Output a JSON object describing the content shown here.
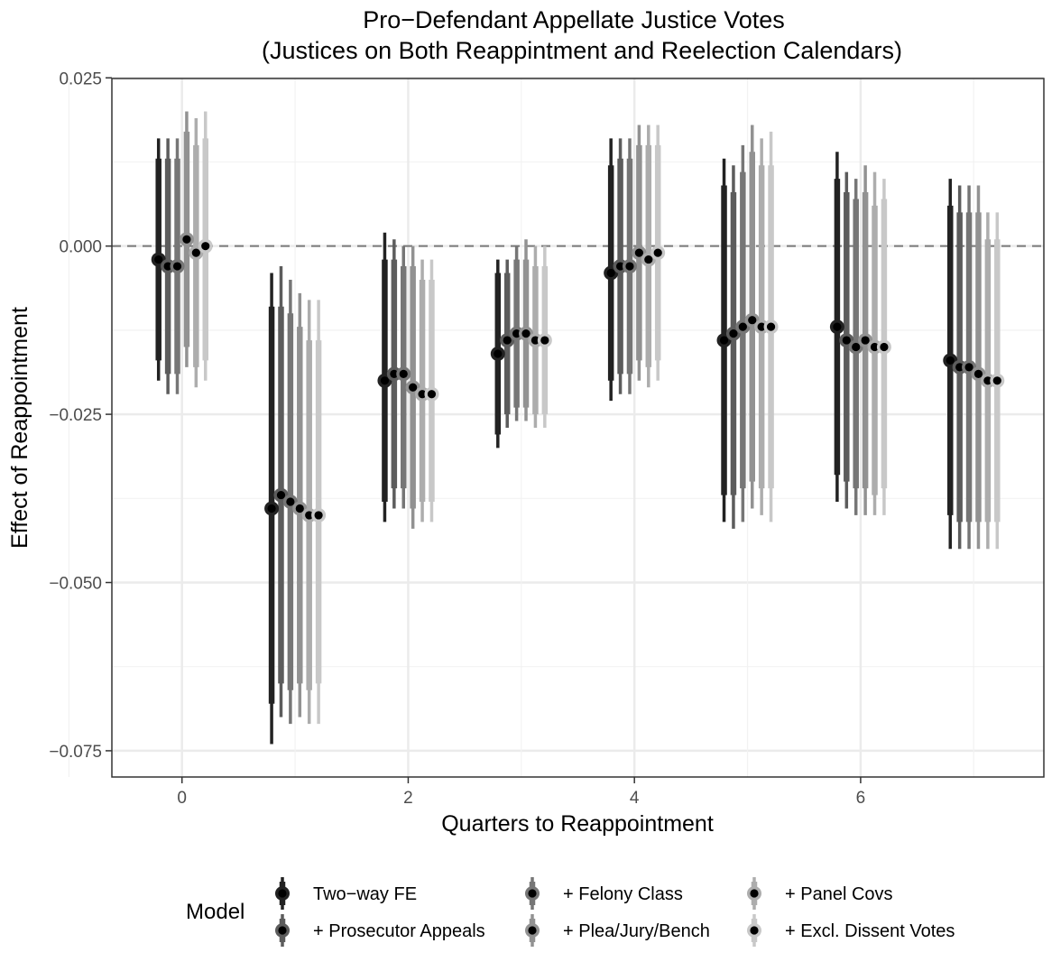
{
  "chart_data": {
    "type": "scatter",
    "title": "Pro−Defendant Appellate Justice Votes",
    "subtitle": "(Justices on Both Reappintment and Reelection Calendars)",
    "xlabel": "Quarters to Reappointment",
    "ylabel": "Effect of Reappointment",
    "xlim": [
      -0.62,
      7.62
    ],
    "ylim": [
      -0.0789,
      0.0249
    ],
    "x_ticks": [
      0,
      2,
      4,
      6
    ],
    "x_tick_labels": [
      "0",
      "2",
      "4",
      "6"
    ],
    "y_ticks": [
      0.025,
      0.0,
      -0.025,
      -0.05,
      -0.075
    ],
    "y_tick_labels": [
      "0.025",
      "0.000",
      "−0.025",
      "−0.050",
      "−0.075"
    ],
    "reference_line": {
      "y": 0,
      "style": "dashed"
    },
    "grid": true,
    "x": [
      0,
      1,
      2,
      3,
      4,
      5,
      6,
      7
    ],
    "series": [
      {
        "name": "Two−way FE",
        "color": "#222222",
        "estimate": [
          -0.002,
          -0.039,
          -0.02,
          -0.016,
          -0.004,
          -0.014,
          -0.012,
          -0.017
        ],
        "ci95_low": [
          -0.02,
          -0.074,
          -0.041,
          -0.03,
          -0.023,
          -0.041,
          -0.038,
          -0.045
        ],
        "ci95_high": [
          0.016,
          -0.004,
          0.002,
          -0.002,
          0.016,
          0.013,
          0.014,
          0.01
        ],
        "ci90_low": [
          -0.017,
          -0.068,
          -0.038,
          -0.028,
          -0.02,
          -0.037,
          -0.034,
          -0.04
        ],
        "ci90_high": [
          0.013,
          -0.009,
          -0.002,
          -0.004,
          0.012,
          0.009,
          0.01,
          0.006
        ]
      },
      {
        "name": "+ Prosecutor Appeals",
        "color": "#5c5c5c",
        "estimate": [
          -0.003,
          -0.037,
          -0.019,
          -0.014,
          -0.003,
          -0.013,
          -0.014,
          -0.018
        ],
        "ci95_low": [
          -0.022,
          -0.07,
          -0.039,
          -0.027,
          -0.022,
          -0.042,
          -0.039,
          -0.045
        ],
        "ci95_high": [
          0.016,
          -0.003,
          0.001,
          -0.002,
          0.016,
          0.012,
          0.011,
          0.009
        ],
        "ci90_low": [
          -0.019,
          -0.065,
          -0.036,
          -0.025,
          -0.019,
          -0.037,
          -0.035,
          -0.041
        ],
        "ci90_high": [
          0.013,
          -0.009,
          -0.002,
          -0.004,
          0.013,
          0.008,
          0.008,
          0.005
        ]
      },
      {
        "name": "+ Felony Class",
        "color": "#767676",
        "estimate": [
          -0.003,
          -0.038,
          -0.019,
          -0.013,
          -0.003,
          -0.012,
          -0.015,
          -0.018
        ],
        "ci95_low": [
          -0.022,
          -0.071,
          -0.039,
          -0.026,
          -0.022,
          -0.041,
          -0.04,
          -0.045
        ],
        "ci95_high": [
          0.016,
          -0.005,
          0.0,
          0.0,
          0.016,
          0.015,
          0.01,
          0.009
        ],
        "ci90_low": [
          -0.019,
          -0.066,
          -0.036,
          -0.024,
          -0.019,
          -0.036,
          -0.036,
          -0.041
        ],
        "ci90_high": [
          0.013,
          -0.01,
          -0.003,
          -0.002,
          0.013,
          0.011,
          0.007,
          0.005
        ]
      },
      {
        "name": "+ Plea/Jury/Bench",
        "color": "#929292",
        "estimate": [
          0.001,
          -0.039,
          -0.021,
          -0.013,
          -0.001,
          -0.011,
          -0.014,
          -0.019
        ],
        "ci95_low": [
          -0.018,
          -0.07,
          -0.042,
          -0.026,
          -0.02,
          -0.039,
          -0.04,
          -0.045
        ],
        "ci95_high": [
          0.02,
          -0.007,
          0.0,
          0.001,
          0.018,
          0.018,
          0.012,
          0.009
        ],
        "ci90_low": [
          -0.015,
          -0.065,
          -0.039,
          -0.024,
          -0.017,
          -0.035,
          -0.036,
          -0.041
        ],
        "ci90_high": [
          0.017,
          -0.012,
          -0.003,
          -0.002,
          0.015,
          0.014,
          0.008,
          0.005
        ]
      },
      {
        "name": "+ Panel Covs",
        "color": "#adadad",
        "estimate": [
          -0.001,
          -0.04,
          -0.022,
          -0.014,
          -0.002,
          -0.012,
          -0.015,
          -0.02
        ],
        "ci95_low": [
          -0.021,
          -0.071,
          -0.041,
          -0.027,
          -0.021,
          -0.04,
          -0.04,
          -0.045
        ],
        "ci95_high": [
          0.019,
          -0.008,
          -0.002,
          0.0,
          0.018,
          0.016,
          0.011,
          0.005
        ],
        "ci90_low": [
          -0.018,
          -0.066,
          -0.038,
          -0.025,
          -0.018,
          -0.036,
          -0.037,
          -0.041
        ],
        "ci90_high": [
          0.015,
          -0.014,
          -0.005,
          -0.003,
          0.015,
          0.012,
          0.006,
          0.001
        ]
      },
      {
        "name": "+ Excl. Dissent Votes",
        "color": "#c8c8c8",
        "estimate": [
          0.0,
          -0.04,
          -0.022,
          -0.014,
          -0.001,
          -0.012,
          -0.015,
          -0.02
        ],
        "ci95_low": [
          -0.02,
          -0.071,
          -0.041,
          -0.027,
          -0.02,
          -0.041,
          -0.04,
          -0.045
        ],
        "ci95_high": [
          0.02,
          -0.008,
          -0.002,
          0.0,
          0.018,
          0.017,
          0.01,
          0.005
        ],
        "ci90_low": [
          -0.017,
          -0.065,
          -0.038,
          -0.025,
          -0.017,
          -0.036,
          -0.036,
          -0.041
        ],
        "ci90_high": [
          0.016,
          -0.014,
          -0.005,
          -0.003,
          0.015,
          0.012,
          0.007,
          0.001
        ]
      }
    ],
    "legend": {
      "title": "Model",
      "position": "bottom"
    }
  }
}
